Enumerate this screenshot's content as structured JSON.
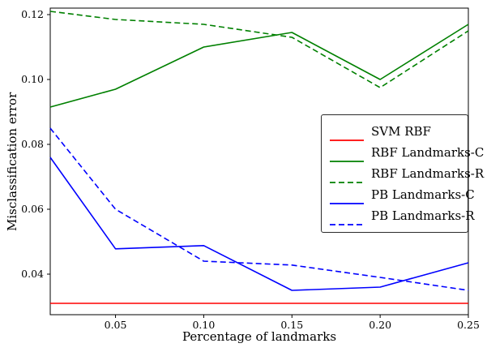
{
  "figure": {
    "background": "#ffffff",
    "frame_color": "#000000"
  },
  "chart_data": {
    "type": "line",
    "title": "",
    "xlabel": "Percentage of landmarks",
    "ylabel": "Misclassification error",
    "grid": false,
    "legend_position": "center-right",
    "xlim": [
      0.013,
      0.25
    ],
    "ylim": [
      0.0275,
      0.122
    ],
    "xticks": [
      0.05,
      0.1,
      0.15,
      0.2,
      0.25
    ],
    "xtick_labels": [
      "0.05",
      "0.10",
      "0.15",
      "0.20",
      "0.25"
    ],
    "yticks": [
      0.04,
      0.06,
      0.08,
      0.1,
      0.12
    ],
    "ytick_labels": [
      "0.04",
      "0.06",
      "0.08",
      "0.10",
      "0.12"
    ],
    "x": [
      0.013,
      0.05,
      0.1,
      0.15,
      0.2,
      0.25
    ],
    "series": [
      {
        "name": "SVM RBF",
        "color": "#ff0000",
        "style": "solid",
        "values": [
          0.031,
          0.031,
          0.031,
          0.031,
          0.031,
          0.031
        ]
      },
      {
        "name": "RBF Landmarks-C",
        "color": "#008000",
        "style": "solid",
        "values": [
          0.0915,
          0.097,
          0.11,
          0.1145,
          0.1,
          0.117
        ]
      },
      {
        "name": "RBF Landmarks-R",
        "color": "#008000",
        "style": "dashed",
        "values": [
          0.121,
          0.1185,
          0.117,
          0.113,
          0.0975,
          0.115
        ]
      },
      {
        "name": "PB Landmarks-C",
        "color": "#0000ff",
        "style": "solid",
        "values": [
          0.076,
          0.0478,
          0.0488,
          0.035,
          0.036,
          0.0435
        ]
      },
      {
        "name": "PB Landmarks-R",
        "color": "#0000ff",
        "style": "dashed",
        "values": [
          0.085,
          0.06,
          0.044,
          0.0428,
          0.039,
          0.035
        ]
      }
    ]
  }
}
